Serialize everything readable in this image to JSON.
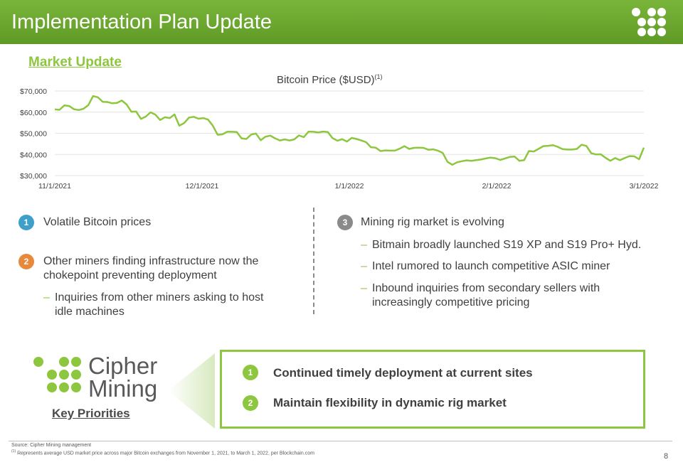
{
  "header": {
    "title": "Implementation Plan Update"
  },
  "market_update": {
    "heading": "Market Update"
  },
  "chart": {
    "title": "Bitcoin Price ($USD)",
    "title_footnote": "(1)"
  },
  "chart_data": {
    "type": "line",
    "title": "Bitcoin Price ($USD)",
    "xlabel": "",
    "ylabel": "",
    "x_tick_labels": [
      "11/1/2021",
      "12/1/2021",
      "1/1/2022",
      "2/1/2022",
      "3/1/2022"
    ],
    "y_tick_labels": [
      "$70,000",
      "$60,000",
      "$50,000",
      "$40,000",
      "$30,000"
    ],
    "ylim": [
      30000,
      70000
    ],
    "grid": true,
    "color": "#8dc63f",
    "series": [
      {
        "x_start": "11/1/2021",
        "x_end": "3/1/2022",
        "values": [
          61300,
          61100,
          63200,
          62900,
          61400,
          61000,
          61600,
          63300,
          67600,
          67000,
          64900,
          64800,
          64200,
          64400,
          65500,
          63600,
          60200,
          60300,
          56800,
          57900,
          59900,
          58800,
          56300,
          57600,
          57200,
          58900,
          53600,
          54800,
          57400,
          57800,
          56900,
          57200,
          56500,
          53600,
          49300,
          49500,
          50700,
          50700,
          50600,
          47600,
          47300,
          49400,
          49900,
          46700,
          48400,
          48900,
          47600,
          46600,
          47100,
          46600,
          47100,
          49000,
          48200,
          50800,
          50700,
          50400,
          50800,
          50600,
          47700,
          46500,
          47200,
          46100,
          47800,
          47300,
          46600,
          45800,
          43400,
          43200,
          41600,
          41900,
          41800,
          41800,
          42700,
          43900,
          42600,
          43100,
          43200,
          43100,
          42200,
          42400,
          41800,
          40700,
          36500,
          35100,
          36300,
          36800,
          37200,
          37000,
          37300,
          37600,
          38100,
          38500,
          38200,
          37400,
          38100,
          38800,
          39000,
          37000,
          37300,
          41600,
          41400,
          42600,
          43900,
          44100,
          44400,
          43600,
          42500,
          42300,
          42300,
          42600,
          44600,
          44000,
          40600,
          40000,
          40100,
          38400,
          37000,
          38300,
          37300,
          38300,
          39200,
          39100,
          37700,
          43200
        ]
      }
    ]
  },
  "left_bullets": [
    {
      "num": "1",
      "text": "Volatile Bitcoin prices"
    },
    {
      "num": "2",
      "text_lines": [
        "Other miners finding infrastructure now the",
        "chokepoint preventing deployment"
      ]
    }
  ],
  "left_sub_bullets": [
    {
      "text_lines": [
        "Inquiries from other miners asking to host",
        "idle machines"
      ]
    }
  ],
  "right_bullet": {
    "num": "3",
    "text": "Mining rig market is evolving"
  },
  "right_sub_bullets": [
    {
      "text_lines": [
        "Bitmain broadly launched S19 XP and S19 Pro+ Hyd."
      ]
    },
    {
      "text_lines": [
        "Intel rumored to launch competitive ASIC miner"
      ]
    },
    {
      "text_lines": [
        "Inbound inquiries from secondary sellers with",
        "increasingly competitive pricing"
      ]
    }
  ],
  "dash": "–",
  "logo": {
    "line1": "Cipher",
    "line2": "Mining"
  },
  "key_priorities": {
    "label": "Key Priorities",
    "items": [
      {
        "num": "1",
        "text": "Continued timely deployment at current sites"
      },
      {
        "num": "2",
        "text": "Maintain flexibility in dynamic rig market"
      }
    ]
  },
  "footer": {
    "source": "Source: Cipher Mining management",
    "note_marker": "(1)",
    "note_text": " Represents average USD market price across major Bitcoin exchanges from November 1, 2021, to March 1, 2022, per Blockchain.com",
    "page_number": "8"
  },
  "colors": {
    "brand_green": "#8dc63f",
    "header_green": "#6aa52f",
    "blue_badge": "#3e9fc9",
    "orange_badge": "#e8883a",
    "gray_badge": "#8a8a8a"
  }
}
